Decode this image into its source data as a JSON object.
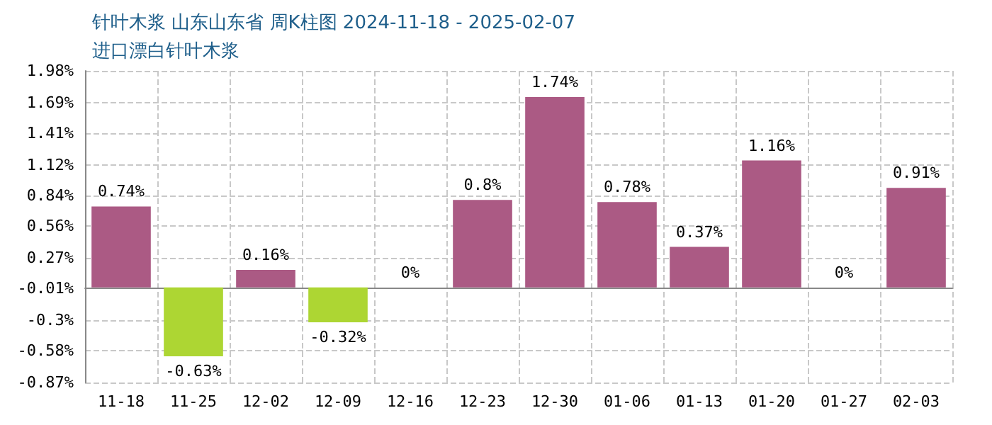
{
  "chart_data": {
    "type": "bar",
    "title": "针叶木浆 山东山东省 周K柱图 2024-11-18 - 2025-02-07",
    "subtitle": "进口漂白针叶木浆",
    "categories": [
      "11-18",
      "11-25",
      "12-02",
      "12-09",
      "12-16",
      "12-23",
      "12-30",
      "01-06",
      "01-13",
      "01-20",
      "01-27",
      "02-03"
    ],
    "values": [
      0.74,
      -0.63,
      0.16,
      -0.32,
      0,
      0.8,
      1.74,
      0.78,
      0.37,
      1.16,
      0,
      0.91
    ],
    "value_labels": [
      "0.74%",
      "-0.63%",
      "0.16%",
      "-0.32%",
      "0%",
      "0.8%",
      "1.74%",
      "0.78%",
      "0.37%",
      "1.16%",
      "0%",
      "0.91%"
    ],
    "colors": [
      "#ab5a84",
      "#add633",
      "#ab5a84",
      "#add633",
      "#ab5a84",
      "#ab5a84",
      "#ab5a84",
      "#ab5a84",
      "#ab5a84",
      "#ab5a84",
      "#ab5a84",
      "#ab5a84"
    ],
    "ylim": [
      -0.87,
      1.98
    ],
    "yticks": [
      {
        "value": -0.87,
        "label": "-0.87%"
      },
      {
        "value": -0.58,
        "label": "-0.58%"
      },
      {
        "value": -0.3,
        "label": "-0.3%"
      },
      {
        "value": -0.01,
        "label": "-0.01%"
      },
      {
        "value": 0.27,
        "label": "0.27%"
      },
      {
        "value": 0.56,
        "label": "0.56%"
      },
      {
        "value": 0.84,
        "label": "0.84%"
      },
      {
        "value": 1.12,
        "label": "1.12%"
      },
      {
        "value": 1.41,
        "label": "1.41%"
      },
      {
        "value": 1.69,
        "label": "1.69%"
      },
      {
        "value": 1.98,
        "label": "1.98%"
      }
    ],
    "grid": true
  }
}
